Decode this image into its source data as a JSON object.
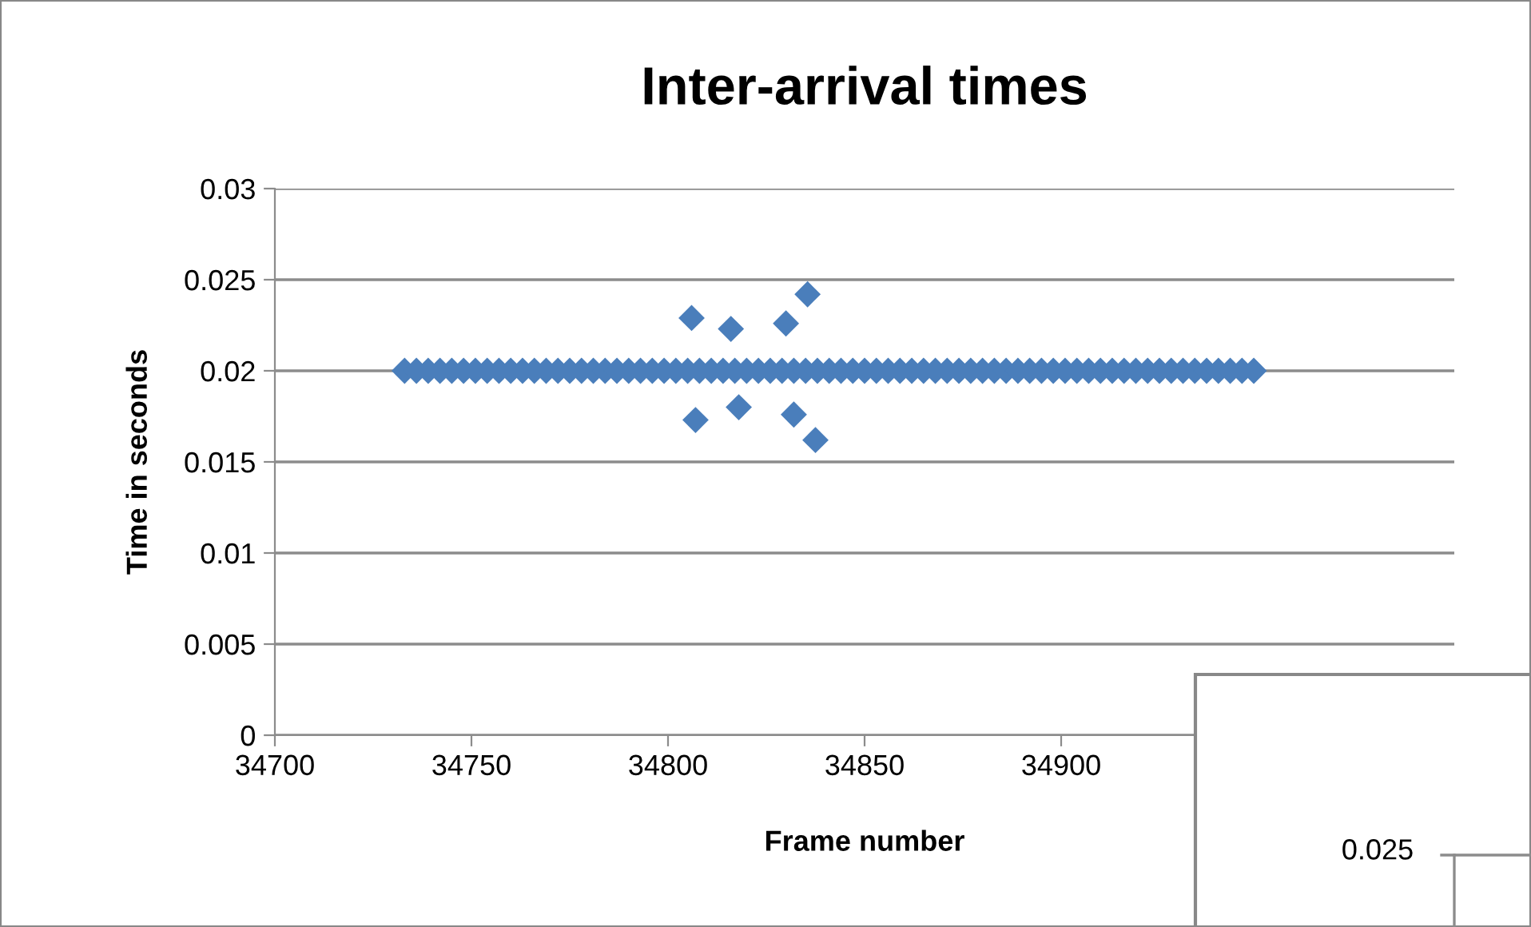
{
  "chart_data": [
    {
      "type": "scatter",
      "title": "Inter-arrival times",
      "xlabel": "Frame number",
      "ylabel": "Time in seconds",
      "color": "#4a7ebb",
      "marker": "diamond",
      "grid": "y",
      "xlim": [
        34700,
        35000
      ],
      "xticks": [
        34700,
        34750,
        34800,
        34850,
        34900
      ],
      "ylim": [
        0,
        0.03
      ],
      "yticks": [
        0,
        0.005,
        0.01,
        0.015,
        0.02,
        0.025,
        0.03
      ],
      "series": [
        {
          "x": [
            34733,
            34736,
            34739,
            34742,
            34745,
            34748,
            34751,
            34754,
            34757,
            34760,
            34763,
            34766,
            34769,
            34772,
            34775,
            34778,
            34781,
            34784,
            34787,
            34790,
            34793,
            34796,
            34799,
            34802,
            34805,
            34808,
            34811,
            34814,
            34817,
            34820,
            34823,
            34826,
            34829,
            34832,
            34835,
            34838,
            34841,
            34844,
            34847,
            34850,
            34853,
            34856,
            34859,
            34862,
            34865,
            34868,
            34871,
            34874,
            34877,
            34880,
            34883,
            34886,
            34889,
            34892,
            34895,
            34898,
            34901,
            34904,
            34907,
            34910,
            34913,
            34916,
            34919,
            34922,
            34925,
            34928,
            34931,
            34934,
            34937,
            34940,
            34943,
            34946,
            34949
          ],
          "values": [
            0.02,
            0.02,
            0.02,
            0.02,
            0.02,
            0.02,
            0.02,
            0.02,
            0.02,
            0.02,
            0.02,
            0.02,
            0.02,
            0.02,
            0.02,
            0.02,
            0.02,
            0.02,
            0.02,
            0.02,
            0.02,
            0.02,
            0.02,
            0.02,
            0.02,
            0.02,
            0.02,
            0.02,
            0.02,
            0.02,
            0.02,
            0.02,
            0.02,
            0.02,
            0.02,
            0.02,
            0.02,
            0.02,
            0.02,
            0.02,
            0.02,
            0.02,
            0.02,
            0.02,
            0.02,
            0.02,
            0.02,
            0.02,
            0.02,
            0.02,
            0.02,
            0.02,
            0.02,
            0.02,
            0.02,
            0.02,
            0.02,
            0.02,
            0.02,
            0.02,
            0.02,
            0.02,
            0.02,
            0.02,
            0.02,
            0.02,
            0.02,
            0.02,
            0.02,
            0.02,
            0.02,
            0.02,
            0.02
          ]
        },
        {
          "x": [
            34806,
            34807,
            34816,
            34818,
            34830,
            34832,
            34835.5,
            34837.5
          ],
          "values": [
            0.0229,
            0.0173,
            0.0223,
            0.018,
            0.0226,
            0.0176,
            0.0242,
            0.0162
          ]
        }
      ]
    },
    {
      "type": "other",
      "annotations": [
        "0.025"
      ]
    }
  ]
}
